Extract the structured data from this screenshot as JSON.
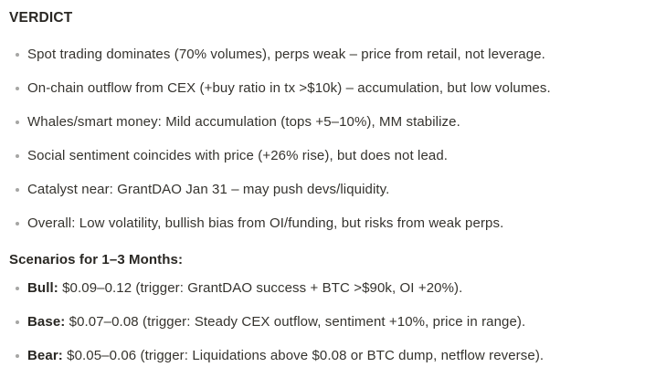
{
  "page": {
    "verdict_heading": "VERDICT",
    "verdict_bullets": [
      "Spot trading dominates (70% volumes), perps weak – price from retail, not leverage.",
      "On-chain outflow from CEX (+buy ratio in tx >$10k) – accumulation, but low volumes.",
      "Whales/smart money: Mild accumulation (tops +5–10%), MM stabilize.",
      "Social sentiment coincides with price (+26% rise), but does not lead.",
      "Catalyst near: GrantDAO Jan 31 – may push devs/liquidity.",
      "Overall: Low volatility, bullish bias from OI/funding, but risks from weak perps."
    ],
    "scenarios_heading": "Scenarios for 1–3 Months:",
    "scenario_bullets": [
      {
        "label": "Bull:",
        "text": " $0.09–0.12 (trigger: GrantDAO success + BTC >$90k, OI +20%)."
      },
      {
        "label": "Base:",
        "text": " $0.07–0.08 (trigger: Steady CEX outflow, sentiment +10%, price in range)."
      },
      {
        "label": "Bear:",
        "text": " $0.05–0.06 (trigger: Liquidations above $0.08 or BTC dump, netflow reverse)."
      }
    ],
    "colors": {
      "background": "#ffffff",
      "text": "#35332e",
      "heading": "#292723",
      "bullet_dot": "#a6a6a4"
    }
  }
}
